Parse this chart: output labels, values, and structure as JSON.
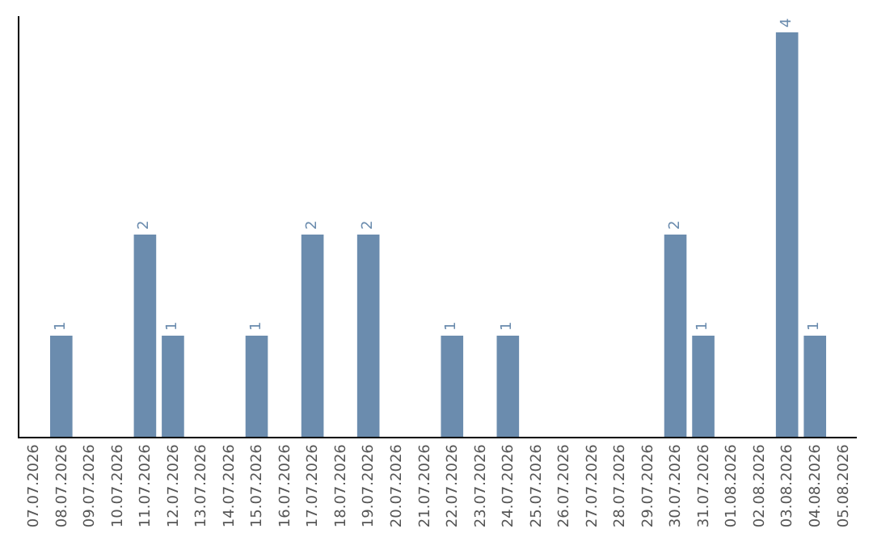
{
  "chart_data": {
    "type": "bar",
    "categories": [
      "07.07.2026",
      "08.07.2026",
      "09.07.2026",
      "10.07.2026",
      "11.07.2026",
      "12.07.2026",
      "13.07.2026",
      "14.07.2026",
      "15.07.2026",
      "16.07.2026",
      "17.07.2026",
      "18.07.2026",
      "19.07.2026",
      "20.07.2026",
      "21.07.2026",
      "22.07.2026",
      "23.07.2026",
      "24.07.2026",
      "25.07.2026",
      "26.07.2026",
      "27.07.2026",
      "28.07.2026",
      "29.07.2026",
      "30.07.2026",
      "31.07.2026",
      "01.08.2026",
      "02.08.2026",
      "03.08.2026",
      "04.08.2026",
      "05.08.2026"
    ],
    "values": [
      null,
      1,
      null,
      null,
      2,
      1,
      null,
      null,
      1,
      null,
      2,
      null,
      2,
      null,
      null,
      1,
      null,
      1,
      null,
      null,
      null,
      null,
      null,
      2,
      1,
      null,
      null,
      4,
      1,
      null
    ],
    "value_labels": [
      null,
      "1",
      null,
      null,
      "2",
      "1",
      null,
      null,
      "1",
      null,
      "2",
      null,
      "2",
      null,
      null,
      "1",
      null,
      "1",
      null,
      null,
      null,
      null,
      null,
      "2",
      "1",
      null,
      null,
      "4",
      "1",
      null
    ],
    "color": "#6b8cae",
    "ylim": [
      0,
      4.16
    ],
    "tick_labels": "x",
    "legend": false
  }
}
